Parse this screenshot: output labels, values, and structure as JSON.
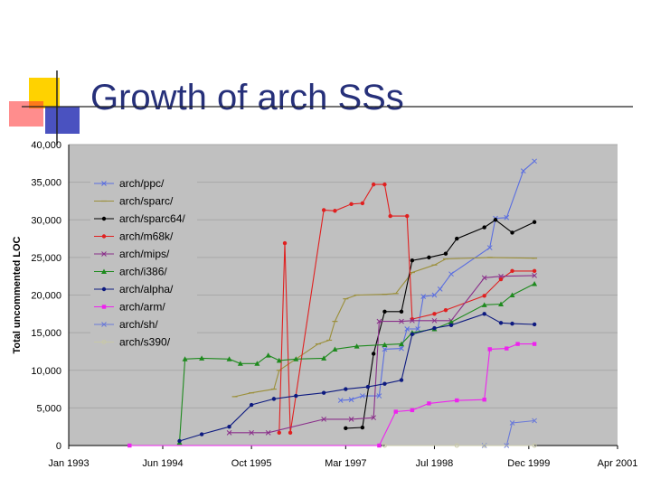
{
  "slide": {
    "title": "Growth of arch SSs"
  },
  "colors": {
    "plot_bg": "#c0c0c0",
    "title": "#26307a",
    "deco_yellow": "#ffd200",
    "deco_blue": "#2a34b5",
    "deco_red": "#ff3030"
  },
  "chart_data": {
    "type": "line",
    "title": "",
    "xlabel": "",
    "ylabel": "Total uncommented LOC",
    "ylim": [
      0,
      40000
    ],
    "xlim": [
      "1993-01-01",
      "2001-04-01"
    ],
    "yticks": [
      0,
      5000,
      10000,
      15000,
      20000,
      25000,
      30000,
      35000,
      40000
    ],
    "ytick_labels": [
      "0",
      "5,000",
      "10,000",
      "15,000",
      "20,000",
      "25,000",
      "30,000",
      "35,000",
      "40,000"
    ],
    "xticks": [
      "1993-01-01",
      "1994-06-01",
      "1995-10-01",
      "1997-03-01",
      "1998-07-01",
      "1999-12-01",
      "2001-04-01"
    ],
    "xtick_labels": [
      "Jan 1993",
      "Jun 1994",
      "Oct 1995",
      "Mar 1997",
      "Jul 1998",
      "Dec 1999",
      "Apr 2001"
    ],
    "grid": true,
    "legend": "top-left",
    "series": [
      {
        "name": "arch/ppc/",
        "color": "#5a6ee0",
        "marker": "x",
        "points": [
          [
            "1997-02-01",
            6000
          ],
          [
            "1997-04-01",
            6100
          ],
          [
            "1997-06-01",
            6600
          ],
          [
            "1997-09-01",
            6600
          ],
          [
            "1997-10-01",
            12800
          ],
          [
            "1998-01-01",
            12900
          ],
          [
            "1998-02-01",
            15500
          ],
          [
            "1998-04-01",
            15500
          ],
          [
            "1998-05-01",
            19800
          ],
          [
            "1998-07-01",
            20000
          ],
          [
            "1998-08-01",
            20800
          ],
          [
            "1998-10-01",
            22800
          ],
          [
            "1999-05-01",
            26300
          ],
          [
            "1999-06-01",
            30200
          ],
          [
            "1999-08-01",
            30300
          ],
          [
            "1999-11-01",
            36500
          ],
          [
            "2000-01-01",
            37800
          ]
        ]
      },
      {
        "name": "arch/sparc/",
        "color": "#9b8f3a",
        "marker": "dash",
        "points": [
          [
            "1995-07-01",
            6500
          ],
          [
            "1995-10-01",
            7000
          ],
          [
            "1996-02-01",
            7500
          ],
          [
            "1996-03-01",
            10000
          ],
          [
            "1996-10-01",
            13500
          ],
          [
            "1996-12-01",
            14000
          ],
          [
            "1997-01-01",
            16500
          ],
          [
            "1997-03-01",
            19500
          ],
          [
            "1997-05-01",
            20000
          ],
          [
            "1997-10-01",
            20100
          ],
          [
            "1997-12-01",
            20200
          ],
          [
            "1998-03-01",
            23000
          ],
          [
            "1998-07-01",
            24000
          ],
          [
            "1998-09-01",
            24800
          ],
          [
            "1999-05-01",
            25000
          ],
          [
            "2000-01-01",
            24900
          ]
        ]
      },
      {
        "name": "arch/sparc64/",
        "color": "#000000",
        "marker": "dot",
        "points": [
          [
            "1997-03-01",
            2300
          ],
          [
            "1997-06-01",
            2400
          ],
          [
            "1997-08-01",
            12200
          ],
          [
            "1997-10-01",
            17800
          ],
          [
            "1998-01-01",
            17800
          ],
          [
            "1998-03-01",
            24600
          ],
          [
            "1998-06-01",
            25000
          ],
          [
            "1998-09-01",
            25500
          ],
          [
            "1998-11-01",
            27500
          ],
          [
            "1999-04-01",
            29000
          ],
          [
            "1999-06-01",
            30000
          ],
          [
            "1999-09-01",
            28300
          ],
          [
            "2000-01-01",
            29700
          ]
        ]
      },
      {
        "name": "arch/m68k/",
        "color": "#e02020",
        "marker": "dot",
        "points": [
          [
            "1996-03-01",
            1700
          ],
          [
            "1996-04-01",
            26900
          ],
          [
            "1996-05-01",
            1700
          ],
          [
            "1996-11-01",
            31300
          ],
          [
            "1997-01-01",
            31200
          ],
          [
            "1997-04-01",
            32100
          ],
          [
            "1997-06-01",
            32200
          ],
          [
            "1997-08-01",
            34700
          ],
          [
            "1997-10-01",
            34700
          ],
          [
            "1997-11-01",
            30500
          ],
          [
            "1998-02-01",
            30500
          ],
          [
            "1998-03-01",
            16800
          ],
          [
            "1998-07-01",
            17500
          ],
          [
            "1998-09-01",
            18000
          ],
          [
            "1999-04-01",
            19900
          ],
          [
            "1999-07-01",
            22100
          ],
          [
            "1999-09-01",
            23200
          ],
          [
            "2000-01-01",
            23200
          ]
        ]
      },
      {
        "name": "arch/mips/",
        "color": "#8a2f8a",
        "marker": "x",
        "points": [
          [
            "1995-06-01",
            1700
          ],
          [
            "1995-10-01",
            1700
          ],
          [
            "1996-01-01",
            1700
          ],
          [
            "1996-11-01",
            3500
          ],
          [
            "1997-04-01",
            3500
          ],
          [
            "1997-08-01",
            3700
          ],
          [
            "1997-09-01",
            16500
          ],
          [
            "1998-01-01",
            16500
          ],
          [
            "1998-03-01",
            16600
          ],
          [
            "1998-07-01",
            16600
          ],
          [
            "1998-10-01",
            16600
          ],
          [
            "1999-04-01",
            22300
          ],
          [
            "1999-07-01",
            22500
          ],
          [
            "2000-01-01",
            22600
          ]
        ]
      },
      {
        "name": "arch/i386/",
        "color": "#1e8a1e",
        "marker": "triangle",
        "points": [
          [
            "1994-09-01",
            400
          ],
          [
            "1994-10-01",
            11500
          ],
          [
            "1995-01-01",
            11600
          ],
          [
            "1995-06-01",
            11500
          ],
          [
            "1995-08-01",
            10900
          ],
          [
            "1995-11-01",
            10900
          ],
          [
            "1996-01-01",
            12000
          ],
          [
            "1996-03-01",
            11300
          ],
          [
            "1996-06-01",
            11500
          ],
          [
            "1996-11-01",
            11600
          ],
          [
            "1997-01-01",
            12800
          ],
          [
            "1997-05-01",
            13200
          ],
          [
            "1997-10-01",
            13400
          ],
          [
            "1998-01-01",
            13500
          ],
          [
            "1998-03-01",
            15000
          ],
          [
            "1998-07-01",
            15500
          ],
          [
            "1998-10-01",
            16400
          ],
          [
            "1999-04-01",
            18700
          ],
          [
            "1999-07-01",
            18800
          ],
          [
            "1999-09-01",
            20000
          ],
          [
            "2000-01-01",
            21500
          ]
        ]
      },
      {
        "name": "arch/alpha/",
        "color": "#0d1a80",
        "marker": "dot",
        "points": [
          [
            "1994-09-01",
            600
          ],
          [
            "1995-01-01",
            1500
          ],
          [
            "1995-06-01",
            2500
          ],
          [
            "1995-10-01",
            5400
          ],
          [
            "1996-02-01",
            6200
          ],
          [
            "1996-06-01",
            6600
          ],
          [
            "1996-11-01",
            7000
          ],
          [
            "1997-03-01",
            7500
          ],
          [
            "1997-07-01",
            7800
          ],
          [
            "1997-10-01",
            8200
          ],
          [
            "1998-01-01",
            8700
          ],
          [
            "1998-03-01",
            14800
          ],
          [
            "1998-07-01",
            15600
          ],
          [
            "1998-10-01",
            16000
          ],
          [
            "1999-04-01",
            17500
          ],
          [
            "1999-07-01",
            16300
          ],
          [
            "1999-09-01",
            16200
          ],
          [
            "2000-01-01",
            16100
          ]
        ]
      },
      {
        "name": "arch/arm/",
        "color": "#ee22ee",
        "marker": "square",
        "points": [
          [
            "1993-12-01",
            0
          ],
          [
            "1997-09-01",
            0
          ],
          [
            "1997-12-01",
            4500
          ],
          [
            "1998-03-01",
            4700
          ],
          [
            "1998-06-01",
            5600
          ],
          [
            "1998-11-01",
            6000
          ],
          [
            "1999-04-01",
            6100
          ],
          [
            "1999-05-01",
            12800
          ],
          [
            "1999-08-01",
            12900
          ],
          [
            "1999-10-01",
            13500
          ],
          [
            "2000-01-01",
            13500
          ]
        ]
      },
      {
        "name": "arch/sh/",
        "color": "#6a7ad8",
        "marker": "x",
        "points": [
          [
            "1999-04-01",
            0
          ],
          [
            "1999-08-01",
            0
          ],
          [
            "1999-09-01",
            3000
          ],
          [
            "2000-01-01",
            3300
          ]
        ]
      },
      {
        "name": "arch/s390/",
        "color": "#c8c8a8",
        "marker": "o",
        "points": [
          [
            "1997-10-01",
            0
          ],
          [
            "1998-11-01",
            0
          ],
          [
            "1999-04-01",
            0
          ],
          [
            "2000-01-01",
            0
          ]
        ]
      }
    ]
  }
}
